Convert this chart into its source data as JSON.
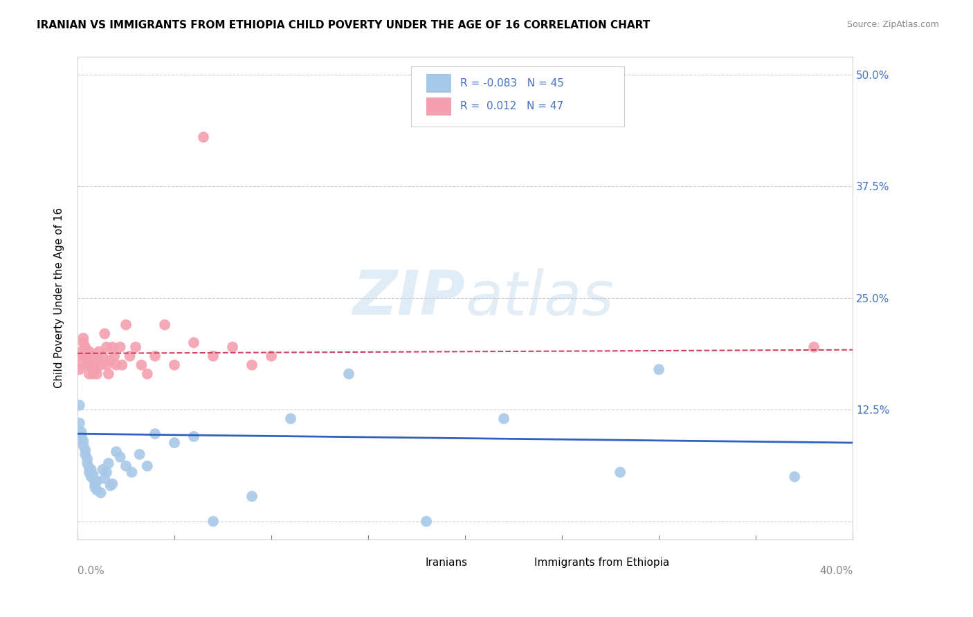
{
  "title": "IRANIAN VS IMMIGRANTS FROM ETHIOPIA CHILD POVERTY UNDER THE AGE OF 16 CORRELATION CHART",
  "source": "Source: ZipAtlas.com",
  "ylabel": "Child Poverty Under the Age of 16",
  "yticks": [
    0.0,
    0.125,
    0.25,
    0.375,
    0.5
  ],
  "ytick_labels": [
    "",
    "12.5%",
    "25.0%",
    "37.5%",
    "50.0%"
  ],
  "xmin": 0.0,
  "xmax": 0.4,
  "ymin": -0.02,
  "ymax": 0.52,
  "iranians_color": "#a8c8e8",
  "ethiopia_color": "#f4a0b0",
  "iranians_line_color": "#3060c0",
  "ethiopia_line_color": "#d04060",
  "background_color": "#ffffff",
  "iran_line_x0": 0.0,
  "iran_line_y0": 0.098,
  "iran_line_x1": 0.4,
  "iran_line_y1": 0.088,
  "eth_line_x0": 0.0,
  "eth_line_y0": 0.188,
  "eth_line_x1": 0.4,
  "eth_line_y1": 0.192,
  "iranians_x": [
    0.001,
    0.001,
    0.002,
    0.002,
    0.003,
    0.003,
    0.004,
    0.004,
    0.005,
    0.005,
    0.006,
    0.006,
    0.007,
    0.007,
    0.008,
    0.008,
    0.009,
    0.009,
    0.01,
    0.01,
    0.012,
    0.013,
    0.014,
    0.015,
    0.016,
    0.017,
    0.018,
    0.02,
    0.022,
    0.025,
    0.028,
    0.032,
    0.036,
    0.04,
    0.05,
    0.06,
    0.07,
    0.09,
    0.11,
    0.14,
    0.18,
    0.22,
    0.28,
    0.3,
    0.37
  ],
  "iranians_y": [
    0.11,
    0.13,
    0.1,
    0.095,
    0.085,
    0.09,
    0.08,
    0.075,
    0.07,
    0.065,
    0.06,
    0.055,
    0.05,
    0.058,
    0.048,
    0.052,
    0.042,
    0.038,
    0.035,
    0.045,
    0.032,
    0.058,
    0.048,
    0.055,
    0.065,
    0.04,
    0.042,
    0.078,
    0.072,
    0.062,
    0.055,
    0.075,
    0.062,
    0.098,
    0.088,
    0.095,
    0.0,
    0.028,
    0.115,
    0.165,
    0.0,
    0.115,
    0.055,
    0.17,
    0.05
  ],
  "ethiopia_x": [
    0.001,
    0.001,
    0.002,
    0.002,
    0.003,
    0.003,
    0.004,
    0.004,
    0.005,
    0.005,
    0.006,
    0.006,
    0.007,
    0.008,
    0.008,
    0.009,
    0.009,
    0.01,
    0.01,
    0.011,
    0.012,
    0.013,
    0.014,
    0.015,
    0.015,
    0.016,
    0.017,
    0.018,
    0.019,
    0.02,
    0.022,
    0.023,
    0.025,
    0.027,
    0.03,
    0.033,
    0.036,
    0.04,
    0.045,
    0.05,
    0.06,
    0.065,
    0.07,
    0.08,
    0.09,
    0.1,
    0.38
  ],
  "ethiopia_y": [
    0.17,
    0.185,
    0.175,
    0.19,
    0.2,
    0.205,
    0.195,
    0.185,
    0.175,
    0.18,
    0.165,
    0.19,
    0.175,
    0.185,
    0.165,
    0.17,
    0.175,
    0.165,
    0.18,
    0.19,
    0.175,
    0.185,
    0.21,
    0.175,
    0.195,
    0.165,
    0.18,
    0.195,
    0.185,
    0.175,
    0.195,
    0.175,
    0.22,
    0.185,
    0.195,
    0.175,
    0.165,
    0.185,
    0.22,
    0.175,
    0.2,
    0.43,
    0.185,
    0.195,
    0.175,
    0.185,
    0.195
  ]
}
